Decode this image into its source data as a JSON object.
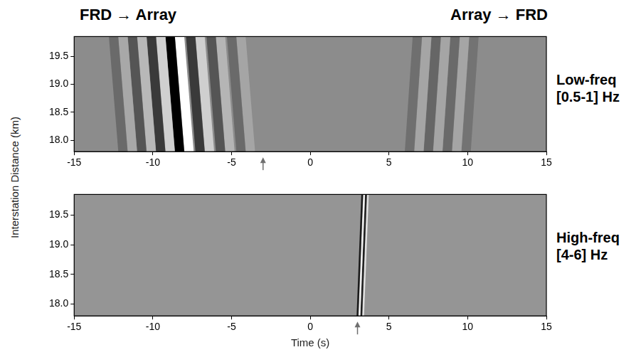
{
  "chart_data": [
    {
      "type": "line",
      "title": "Low-freq [0.5-1] Hz",
      "annotations": [
        "FRD → Array",
        "Array → FRD"
      ],
      "ylabel": "Interstation Distance (km)",
      "arrow_x": -3,
      "xlim": [
        -15,
        15
      ],
      "xticks": [
        -15,
        -10,
        -5,
        0,
        5,
        10,
        15
      ],
      "ylim": [
        17.8,
        19.85
      ],
      "yticks": [
        {
          "value": 18,
          "label": "18.0"
        },
        {
          "value": 18.5,
          "label": "18.5"
        },
        {
          "value": 19,
          "label": "19.0"
        },
        {
          "value": 19.5,
          "label": "19.5"
        }
      ],
      "grid": false,
      "series": [
        {
          "color": "#6a6a6a",
          "x": [
            -12.5,
            -11.9
          ],
          "values": [
            19.85,
            17.8
          ]
        },
        {
          "color": "#a8a8a8",
          "x": [
            -11.9,
            -11.3
          ],
          "values": [
            19.85,
            17.8
          ]
        },
        {
          "color": "#555555",
          "x": [
            -11.3,
            -10.7
          ],
          "values": [
            19.85,
            17.8
          ]
        },
        {
          "color": "#b8b8b8",
          "x": [
            -10.7,
            -10.1
          ],
          "values": [
            19.85,
            17.8
          ]
        },
        {
          "color": "#3a3a3a",
          "x": [
            -10.1,
            -9.5
          ],
          "values": [
            19.85,
            17.8
          ]
        },
        {
          "color": "#d0d0d0",
          "x": [
            -9.5,
            -8.9
          ],
          "values": [
            19.85,
            17.8
          ]
        },
        {
          "color": "#000000",
          "x": [
            -8.9,
            -8.3
          ],
          "values": [
            19.85,
            17.8
          ]
        },
        {
          "color": "#ffffff",
          "x": [
            -8.3,
            -7.7
          ],
          "values": [
            19.85,
            17.8
          ]
        },
        {
          "color": "#3a3a3a",
          "x": [
            -7.6,
            -7.0
          ],
          "values": [
            19.85,
            17.8
          ]
        },
        {
          "color": "#cfcfcf",
          "x": [
            -7.0,
            -6.4
          ],
          "values": [
            19.85,
            17.8
          ]
        },
        {
          "color": "#555555",
          "x": [
            -6.3,
            -5.7
          ],
          "values": [
            19.85,
            17.8
          ]
        },
        {
          "color": "#b5b5b5",
          "x": [
            -5.7,
            -5.1
          ],
          "values": [
            19.85,
            17.8
          ]
        },
        {
          "color": "#6a6a6a",
          "x": [
            -5.0,
            -4.4
          ],
          "values": [
            19.85,
            17.8
          ]
        },
        {
          "color": "#a5a5a5",
          "x": [
            -4.4,
            -3.8
          ],
          "values": [
            19.85,
            17.8
          ]
        },
        {
          "color": "#6f6f6f",
          "x": [
            6.8,
            6.3
          ],
          "values": [
            19.85,
            17.8
          ]
        },
        {
          "color": "#a5a5a5",
          "x": [
            7.4,
            6.9
          ],
          "values": [
            19.85,
            17.8
          ]
        },
        {
          "color": "#666666",
          "x": [
            8.0,
            7.5
          ],
          "values": [
            19.85,
            17.8
          ]
        },
        {
          "color": "#a5a5a5",
          "x": [
            8.6,
            8.1
          ],
          "values": [
            19.85,
            17.8
          ]
        },
        {
          "color": "#6a6a6a",
          "x": [
            9.2,
            8.7
          ],
          "values": [
            19.85,
            17.8
          ]
        },
        {
          "color": "#a5a5a5",
          "x": [
            9.8,
            9.3
          ],
          "values": [
            19.85,
            17.8
          ]
        },
        {
          "color": "#737373",
          "x": [
            10.4,
            9.9
          ],
          "values": [
            19.85,
            17.8
          ]
        }
      ]
    },
    {
      "type": "line",
      "title": "High-freq [4-6] Hz",
      "xlabel": "Time (s)",
      "arrow_x": 3,
      "xlim": [
        -15,
        15
      ],
      "xticks": [
        -15,
        -10,
        -5,
        0,
        5,
        10,
        15
      ],
      "ylim": [
        17.8,
        19.85
      ],
      "yticks": [
        {
          "value": 18,
          "label": "18.0"
        },
        {
          "value": 18.5,
          "label": "18.5"
        },
        {
          "value": 19,
          "label": "19.0"
        },
        {
          "value": 19.5,
          "label": "19.5"
        }
      ],
      "grid": false,
      "series": [
        {
          "color": "#1a1a1a",
          "x": [
            3.3,
            3.0
          ],
          "values": [
            19.85,
            17.8
          ]
        },
        {
          "color": "#f0f0f0",
          "x": [
            3.42,
            3.12
          ],
          "values": [
            19.85,
            17.8
          ]
        },
        {
          "color": "#202020",
          "x": [
            3.54,
            3.24
          ],
          "values": [
            19.85,
            17.8
          ]
        },
        {
          "color": "#e0e0e0",
          "x": [
            3.66,
            3.36
          ],
          "values": [
            19.85,
            17.8
          ]
        }
      ]
    }
  ]
}
